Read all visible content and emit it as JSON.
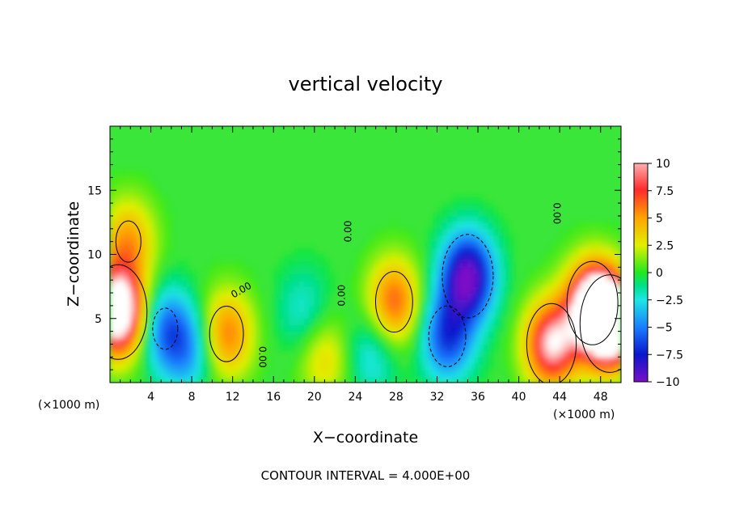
{
  "chart_data": {
    "type": "heatmap",
    "title": "vertical velocity",
    "xlabel": "X−coordinate",
    "ylabel": "Z−coordinate",
    "x_unit_left": "(×1000 m)",
    "x_unit_right": "(×1000 m)",
    "footer": "CONTOUR INTERVAL = 4.000E+00",
    "xlim": [
      0,
      50
    ],
    "ylim": [
      0,
      20
    ],
    "x_ticks": [
      4,
      8,
      12,
      16,
      20,
      24,
      28,
      32,
      36,
      40,
      44,
      48
    ],
    "x_tick_labels": [
      "4",
      "8",
      "12",
      "16",
      "20",
      "24",
      "28",
      "32",
      "36",
      "40",
      "44",
      "48"
    ],
    "y_ticks": [
      5,
      10,
      15
    ],
    "y_tick_labels": [
      "5",
      "10",
      "15"
    ],
    "colorbar": {
      "min": -10,
      "max": 10,
      "ticks": [
        10,
        7.5,
        5,
        2.5,
        0,
        -2.5,
        -5,
        -7.5,
        -10
      ],
      "tick_labels": [
        "10",
        "7.5",
        "5",
        "2.5",
        "0",
        "−2.5",
        "−5",
        "−7.5",
        "−10"
      ]
    },
    "contour_labels": [
      {
        "text": "0.00",
        "x": 13.0,
        "z": 7.0,
        "angle": -30
      },
      {
        "text": "0.00",
        "x": 14.6,
        "z": 2.0,
        "angle": 90
      },
      {
        "text": "0.00",
        "x": 23.6,
        "z": 11.8,
        "angle": -90
      },
      {
        "text": "0.00",
        "x": 23.0,
        "z": 6.8,
        "angle": -90
      },
      {
        "text": "0.00",
        "x": 43.4,
        "z": 13.2,
        "angle": 90
      }
    ],
    "features": [
      {
        "x": 0.8,
        "z": 5.5,
        "w": 1.3
      },
      {
        "x": 1.8,
        "z": 11.0,
        "w": 0.5
      },
      {
        "x": 5.4,
        "z": 4.2,
        "w": -0.5
      },
      {
        "x": 7.8,
        "z": 2.6,
        "w": -0.4
      },
      {
        "x": 11.4,
        "z": 3.8,
        "w": 0.6
      },
      {
        "x": 19.0,
        "z": 5.5,
        "w": -0.25
      },
      {
        "x": 21.0,
        "z": 2.0,
        "w": 0.35
      },
      {
        "x": 25.6,
        "z": 2.2,
        "w": -0.3
      },
      {
        "x": 27.8,
        "z": 6.3,
        "w": 0.65
      },
      {
        "x": 35.0,
        "z": 8.3,
        "w": -1.0
      },
      {
        "x": 33.0,
        "z": 3.6,
        "w": -0.65
      },
      {
        "x": 43.2,
        "z": 3.0,
        "w": 0.95
      },
      {
        "x": 47.2,
        "z": 6.2,
        "w": 1.0
      },
      {
        "x": 48.9,
        "z": 4.6,
        "w": 1.4
      }
    ]
  }
}
